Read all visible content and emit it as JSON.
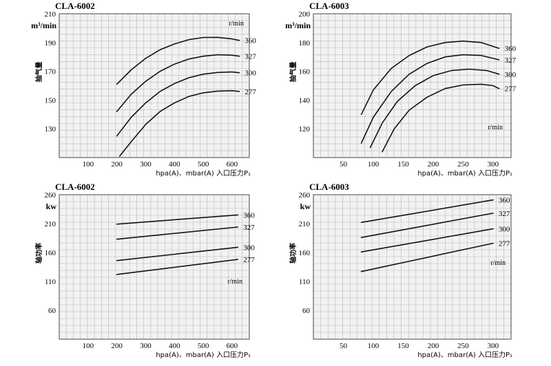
{
  "chart_data": [
    {
      "type": "line",
      "title": "CLA-6002",
      "ylabel": "抽气量",
      "yunit": "m³/min",
      "xlabel": "hpa(A)、mbar(A)  入口压力P₁",
      "speed_unit": "r/min",
      "xlim": [
        0,
        660
      ],
      "ylim": [
        110,
        210
      ],
      "xticks": [
        100,
        200,
        300,
        400,
        500,
        600
      ],
      "yticks": [
        130,
        150,
        170,
        190,
        210
      ],
      "series": [
        {
          "name": "360",
          "points": [
            [
              200,
              161
            ],
            [
              250,
              171
            ],
            [
              300,
              179
            ],
            [
              350,
              185
            ],
            [
              400,
              189
            ],
            [
              450,
              192
            ],
            [
              500,
              193.5
            ],
            [
              550,
              193.6
            ],
            [
              600,
              192.5
            ],
            [
              625,
              191.5
            ]
          ]
        },
        {
          "name": "327",
          "points": [
            [
              200,
              142
            ],
            [
              250,
              154
            ],
            [
              300,
              163
            ],
            [
              350,
              170
            ],
            [
              400,
              175
            ],
            [
              450,
              178.5
            ],
            [
              500,
              180.5
            ],
            [
              550,
              181.5
            ],
            [
              600,
              181.2
            ],
            [
              625,
              180.5
            ]
          ]
        },
        {
          "name": "300",
          "points": [
            [
              200,
              125
            ],
            [
              250,
              138
            ],
            [
              300,
              148
            ],
            [
              350,
              156
            ],
            [
              400,
              161.5
            ],
            [
              450,
              165.5
            ],
            [
              500,
              168
            ],
            [
              550,
              169.2
            ],
            [
              600,
              169.5
            ],
            [
              625,
              169
            ]
          ]
        },
        {
          "name": "277",
          "points": [
            [
              210,
              111
            ],
            [
              250,
              121
            ],
            [
              300,
              133
            ],
            [
              350,
              142
            ],
            [
              400,
              148
            ],
            [
              450,
              152.5
            ],
            [
              500,
              155
            ],
            [
              550,
              156.2
            ],
            [
              600,
              156.5
            ],
            [
              625,
              156
            ]
          ]
        }
      ]
    },
    {
      "type": "line",
      "title": "CLA-6003",
      "ylabel": "抽气量",
      "yunit": "m³/min",
      "xlabel": "hpa(A)、mbar(A)  入口压力P₁",
      "speed_unit": "r/min",
      "xlim": [
        0,
        330
      ],
      "ylim": [
        100,
        200
      ],
      "xticks": [
        50,
        100,
        150,
        200,
        250,
        300
      ],
      "yticks": [
        120,
        140,
        160,
        180,
        200
      ],
      "series": [
        {
          "name": "360",
          "points": [
            [
              80,
              130
            ],
            [
              100,
              147
            ],
            [
              130,
              162
            ],
            [
              160,
              171
            ],
            [
              190,
              177
            ],
            [
              220,
              180
            ],
            [
              250,
              181
            ],
            [
              280,
              180
            ],
            [
              310,
              176
            ]
          ]
        },
        {
          "name": "327",
          "points": [
            [
              80,
              110
            ],
            [
              100,
              128
            ],
            [
              130,
              146
            ],
            [
              160,
              158
            ],
            [
              190,
              165.5
            ],
            [
              220,
              170
            ],
            [
              250,
              171.5
            ],
            [
              280,
              171
            ],
            [
              310,
              168
            ]
          ]
        },
        {
          "name": "300",
          "points": [
            [
              95,
              107
            ],
            [
              115,
              124
            ],
            [
              140,
              139
            ],
            [
              170,
              150
            ],
            [
              200,
              157
            ],
            [
              230,
              160.5
            ],
            [
              260,
              161.5
            ],
            [
              290,
              160.5
            ],
            [
              310,
              158
            ]
          ]
        },
        {
          "name": "277",
          "points": [
            [
              115,
              104
            ],
            [
              135,
              120
            ],
            [
              160,
              133
            ],
            [
              190,
              142
            ],
            [
              220,
              148
            ],
            [
              250,
              150.5
            ],
            [
              280,
              151
            ],
            [
              300,
              150
            ],
            [
              310,
              148
            ]
          ]
        }
      ]
    },
    {
      "type": "line",
      "title": "CLA-6002",
      "ylabel": "轴功率",
      "yunit": "kw",
      "xlabel": "hpa(A)、mbar(A)  入口压力P₁",
      "speed_unit": "r/min",
      "xlim": [
        0,
        660
      ],
      "ylim": [
        10,
        260
      ],
      "xticks": [
        100,
        200,
        300,
        400,
        500,
        600
      ],
      "yticks": [
        60,
        110,
        160,
        210,
        260
      ],
      "series": [
        {
          "name": "360",
          "points": [
            [
              200,
              209
            ],
            [
              620,
              225
            ]
          ]
        },
        {
          "name": "327",
          "points": [
            [
              200,
              183
            ],
            [
              620,
              204
            ]
          ]
        },
        {
          "name": "300",
          "points": [
            [
              200,
              146
            ],
            [
              620,
              169
            ]
          ]
        },
        {
          "name": "277",
          "points": [
            [
              200,
              122
            ],
            [
              620,
              148
            ]
          ]
        }
      ]
    },
    {
      "type": "line",
      "title": "CLA-6003",
      "ylabel": "轴功率",
      "yunit": "kw",
      "xlabel": "hpa(A)、mbar(A)  入口压力P₁",
      "speed_unit": "r/min",
      "xlim": [
        0,
        330
      ],
      "ylim": [
        10,
        260
      ],
      "xticks": [
        50,
        100,
        150,
        200,
        250,
        300
      ],
      "yticks": [
        60,
        110,
        160,
        210,
        260
      ],
      "series": [
        {
          "name": "360",
          "points": [
            [
              80,
              212
            ],
            [
              300,
              251
            ]
          ]
        },
        {
          "name": "327",
          "points": [
            [
              80,
              186
            ],
            [
              300,
              228
            ]
          ]
        },
        {
          "name": "300",
          "points": [
            [
              80,
              161
            ],
            [
              300,
              201
            ]
          ]
        },
        {
          "name": "277",
          "points": [
            [
              80,
              127
            ],
            [
              300,
              176
            ]
          ]
        }
      ]
    }
  ]
}
